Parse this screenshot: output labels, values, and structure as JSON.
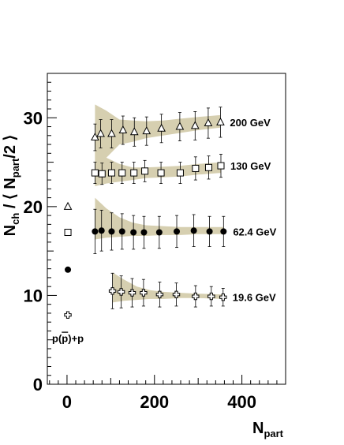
{
  "chart_data": {
    "type": "scatter",
    "xlabel": "N",
    "xlabel_sub": "part",
    "ylabel_main": "N",
    "ylabel_main_sub": "ch",
    "ylabel_rest": " / ⟨ N",
    "ylabel_rest_sub": "part",
    "ylabel_end": "/2 ⟩",
    "xlim": [
      -45,
      500
    ],
    "ylim": [
      0,
      35
    ],
    "x_ticks": [
      0,
      200,
      400
    ],
    "y_ticks": [
      0,
      10,
      20,
      30
    ],
    "x_tick_labels": [
      "0",
      "200",
      "400"
    ],
    "y_tick_labels": [
      "0",
      "10",
      "20",
      "30"
    ],
    "band_color": "#d6cfb0",
    "series": [
      {
        "name": "200 GeV",
        "marker": "open-triangle",
        "x": [
          64,
          77,
          102,
          128,
          154,
          182,
          216,
          258,
          293,
          323,
          351
        ],
        "y": [
          27.8,
          28.2,
          28.2,
          28.6,
          28.4,
          28.5,
          28.8,
          29.0,
          29.1,
          29.4,
          29.5
        ],
        "err": [
          1.5,
          1.6,
          1.6,
          1.6,
          1.6,
          1.6,
          1.6,
          1.6,
          1.6,
          1.7,
          1.7
        ],
        "band_x": [
          64,
          90,
          120,
          150,
          180,
          220,
          260,
          300,
          351
        ],
        "band_lo": [
          24.8,
          25.5,
          27.0,
          27.3,
          27.7,
          28.0,
          28.3,
          28.6,
          28.9
        ],
        "band_hi": [
          31.5,
          30.8,
          29.8,
          29.7,
          29.6,
          29.7,
          29.9,
          30.1,
          30.3
        ]
      },
      {
        "name": "130 GeV",
        "marker": "open-square",
        "x": [
          64,
          80,
          102,
          126,
          153,
          178,
          215,
          259,
          294,
          324,
          352
        ],
        "y": [
          23.8,
          23.7,
          23.8,
          23.8,
          23.8,
          24.0,
          23.8,
          23.8,
          24.3,
          24.4,
          24.6
        ],
        "err": [
          1.2,
          1.2,
          1.2,
          1.2,
          1.2,
          1.2,
          1.2,
          1.2,
          1.3,
          1.3,
          1.3
        ],
        "band_x": [
          64,
          90,
          120,
          150,
          180,
          220,
          260,
          300,
          352
        ],
        "band_lo": [
          22.3,
          22.6,
          22.8,
          23.0,
          23.2,
          23.3,
          23.4,
          23.6,
          23.8
        ],
        "band_hi": [
          26.8,
          25.5,
          24.8,
          24.4,
          24.4,
          24.5,
          24.6,
          24.8,
          25.0
        ]
      },
      {
        "name": "62.4 GeV",
        "marker": "filled-circle",
        "x": [
          64,
          79,
          102,
          126,
          152,
          176,
          211,
          251,
          290,
          326,
          358
        ],
        "y": [
          17.2,
          17.3,
          17.2,
          17.2,
          17.1,
          17.1,
          17.1,
          17.2,
          17.3,
          17.2,
          17.2
        ],
        "err": [
          2.5,
          2.3,
          2.1,
          2.0,
          1.9,
          1.8,
          1.8,
          1.8,
          1.8,
          1.7,
          1.7
        ],
        "band_x": [
          64,
          90,
          120,
          150,
          180,
          220,
          260,
          300,
          358
        ],
        "band_lo": [
          16.3,
          16.5,
          16.6,
          16.7,
          16.7,
          16.8,
          16.8,
          16.9,
          16.9
        ],
        "band_hi": [
          21.0,
          19.8,
          18.8,
          18.2,
          17.9,
          17.8,
          17.7,
          17.7,
          17.7
        ]
      },
      {
        "name": "19.6 GeV",
        "marker": "open-cross",
        "x": [
          104,
          124,
          149,
          175,
          212,
          250,
          294,
          330,
          357
        ],
        "y": [
          10.5,
          10.4,
          10.3,
          10.3,
          10.1,
          10.1,
          9.9,
          9.9,
          9.8
        ],
        "err": [
          2.0,
          1.8,
          1.6,
          1.5,
          1.4,
          1.3,
          1.2,
          1.1,
          1.0
        ],
        "band_x": [
          104,
          130,
          160,
          190,
          220,
          260,
          300,
          357
        ],
        "band_lo": [
          9.2,
          9.4,
          9.5,
          9.6,
          9.6,
          9.7,
          9.7,
          9.6
        ],
        "band_hi": [
          12.6,
          11.8,
          11.0,
          10.6,
          10.4,
          10.3,
          10.2,
          10.1
        ]
      }
    ],
    "reference_points": {
      "label": "p(p̄)+p",
      "label_prefix": "p(",
      "label_pbar": "p",
      "label_suffix": ")+p",
      "points": [
        {
          "marker": "open-triangle",
          "x": 2,
          "y": 20.0
        },
        {
          "marker": "open-square",
          "x": 2,
          "y": 17.1
        },
        {
          "marker": "filled-circle",
          "x": 2,
          "y": 12.9
        },
        {
          "marker": "open-cross",
          "x": 2,
          "y": 7.8
        }
      ]
    }
  }
}
